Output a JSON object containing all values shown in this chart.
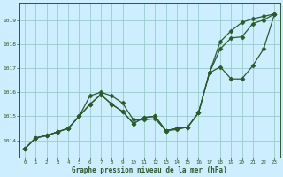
{
  "title": "Graphe pression niveau de la mer (hPa)",
  "bg_color": "#cceeff",
  "grid_color": "#99cccc",
  "line_color": "#2d5a2d",
  "xlim": [
    -0.5,
    23.5
  ],
  "ylim": [
    1013.3,
    1019.7
  ],
  "yticks": [
    1014,
    1015,
    1016,
    1017,
    1018,
    1019
  ],
  "xticks": [
    0,
    1,
    2,
    3,
    4,
    5,
    6,
    7,
    8,
    9,
    10,
    11,
    12,
    13,
    14,
    15,
    16,
    17,
    18,
    19,
    20,
    21,
    22,
    23
  ],
  "line1_x": [
    0,
    1,
    2,
    3,
    4,
    5,
    6,
    7,
    8,
    9,
    10,
    11,
    12,
    13,
    14,
    15,
    16,
    17,
    18,
    19,
    20,
    21,
    22,
    23
  ],
  "line1_y": [
    1013.65,
    1014.1,
    1014.2,
    1014.35,
    1014.5,
    1015.0,
    1015.85,
    1016.0,
    1015.85,
    1015.55,
    1014.85,
    1014.85,
    1014.9,
    1014.4,
    1014.45,
    1014.55,
    1015.15,
    1016.8,
    1017.05,
    1016.55,
    1016.55,
    1017.1,
    1017.8,
    1019.25
  ],
  "line2_x": [
    0,
    1,
    2,
    3,
    4,
    5,
    6,
    7,
    8,
    9,
    10,
    11,
    12,
    13,
    14,
    15,
    16,
    17,
    18,
    19,
    20,
    21,
    22,
    23
  ],
  "line2_y": [
    1013.65,
    1014.1,
    1014.2,
    1014.35,
    1014.5,
    1015.0,
    1015.5,
    1015.9,
    1015.5,
    1015.2,
    1014.7,
    1014.95,
    1015.0,
    1014.4,
    1014.5,
    1014.55,
    1015.15,
    1016.8,
    1017.8,
    1018.25,
    1018.3,
    1018.85,
    1019.0,
    1019.25
  ],
  "line3_x": [
    0,
    1,
    2,
    3,
    4,
    5,
    6,
    7,
    8,
    9,
    10,
    11,
    12,
    13,
    14,
    15,
    16,
    17,
    18,
    19,
    20,
    21,
    22,
    23
  ],
  "line3_y": [
    1013.65,
    1014.1,
    1014.2,
    1014.35,
    1014.5,
    1015.0,
    1015.5,
    1015.9,
    1015.5,
    1015.2,
    1014.7,
    1014.95,
    1015.0,
    1014.4,
    1014.5,
    1014.55,
    1015.15,
    1016.8,
    1018.1,
    1018.55,
    1018.9,
    1019.05,
    1019.15,
    1019.25
  ]
}
